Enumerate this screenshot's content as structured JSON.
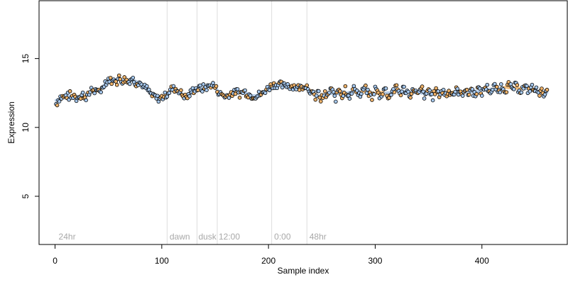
{
  "chart_data": {
    "type": "scatter",
    "title": "",
    "xlabel": "Sample index",
    "ylabel": "Expression",
    "xlim": [
      -15,
      480
    ],
    "ylim": [
      1.5,
      19.2
    ],
    "xticks": [
      0,
      100,
      200,
      300,
      400
    ],
    "yticks": [
      5,
      10,
      15
    ],
    "grid": false,
    "legend": "none",
    "vlines": [
      105,
      133,
      152,
      203,
      236
    ],
    "annotations": [
      {
        "x": 2,
        "text": "24hr"
      },
      {
        "x": 106,
        "text": "dawn"
      },
      {
        "x": 133,
        "text": "dusk"
      },
      {
        "x": 152,
        "text": "12:00"
      },
      {
        "x": 204,
        "text": "0:00"
      },
      {
        "x": 237,
        "text": "48hr"
      }
    ],
    "colors": {
      "point_blue": "#a6c8ee",
      "point_orange": "#f0b36a",
      "trend_blue": "#a9c4e4",
      "trend_orange": "#f2b56b",
      "vline": "#dddddd",
      "annotation": "#a8a8a8",
      "axis": "#000000"
    },
    "n_points": 461,
    "series": [
      {
        "x_start": 1,
        "x_step": 1,
        "values": [
          11.7,
          11.8,
          12.0,
          12.1,
          12.2,
          12.2,
          12.2,
          12.2,
          12.2,
          12.3,
          12.3,
          12.3,
          12.2,
          12.4,
          12.2,
          12.2,
          12.3,
          12.4,
          12.2,
          12.1,
          12.2,
          12.4,
          12.3,
          12.1,
          12.3,
          12.4,
          12.3,
          12.2,
          12.2,
          12.3,
          12.3,
          12.4,
          12.6,
          12.9,
          12.8,
          12.6,
          12.6,
          12.6,
          12.5,
          12.6,
          12.7,
          12.7,
          12.7,
          12.8,
          13.0,
          13.2,
          13.3,
          13.3,
          13.3,
          13.5,
          13.5,
          13.4,
          13.4,
          13.3,
          13.4,
          13.5,
          13.5,
          13.3,
          13.5,
          13.6,
          13.5,
          13.4,
          13.4,
          13.4,
          13.5,
          13.5,
          13.4,
          13.3,
          13.3,
          13.4,
          13.5,
          13.6,
          13.5,
          13.4,
          13.3,
          13.2,
          13.3,
          13.3,
          13.3,
          13.2,
          13.1,
          13.1,
          12.9,
          12.9,
          12.9,
          12.8,
          12.7,
          12.6,
          12.5,
          12.4,
          12.3,
          12.2,
          12.3,
          12.2,
          12.1,
          12.1,
          12.1,
          12.1,
          12.1,
          12.2,
          12.2,
          12.3,
          12.3,
          12.4,
          12.4,
          12.6,
          12.6,
          12.7,
          12.8,
          12.8,
          12.8,
          12.8,
          12.8,
          12.7,
          12.7,
          12.7,
          12.6,
          12.5,
          12.4,
          12.3,
          12.3,
          12.2,
          12.2,
          12.2,
          12.3,
          12.4,
          12.5,
          12.6,
          12.7,
          12.7,
          12.8,
          12.8,
          12.8,
          12.8,
          12.8,
          12.9,
          12.8,
          12.8,
          12.9,
          12.9,
          12.9,
          12.9,
          12.9,
          13.0,
          13.0,
          13.1,
          13.1,
          13.1,
          13.0,
          12.9,
          12.8,
          12.7,
          12.6,
          12.5,
          12.4,
          12.4,
          12.4,
          12.3,
          12.3,
          12.2,
          12.3,
          12.3,
          12.4,
          12.4,
          12.5,
          12.5,
          12.5,
          12.5,
          12.6,
          12.6,
          12.6,
          12.5,
          12.4,
          12.5,
          12.5,
          12.6,
          12.6,
          12.6,
          12.5,
          12.5,
          12.4,
          12.4,
          12.3,
          12.3,
          12.3,
          12.3,
          12.3,
          12.3,
          12.3,
          12.3,
          12.4,
          12.4,
          12.4,
          12.4,
          12.5,
          12.6,
          12.7,
          12.8,
          12.8,
          12.9,
          12.9,
          13.0,
          13.0,
          13.1,
          13.1,
          13.1,
          13.1,
          13.1,
          13.1,
          13.1,
          13.1,
          13.1,
          13.0,
          13.0,
          13.0,
          13.1,
          13.1,
          13.1,
          13.0,
          13.0,
          13.0,
          13.0,
          13.0,
          13.0,
          13.0,
          12.9,
          12.9,
          12.9,
          12.9,
          12.9,
          12.9,
          13.0,
          13.0,
          13.1,
          13.0,
          13.0,
          12.9,
          12.8,
          12.7,
          12.5,
          12.4,
          12.4,
          12.3,
          12.2,
          12.3,
          12.6,
          12.4,
          12.3,
          11.8,
          12.2,
          12.2,
          12.4,
          12.4,
          12.3,
          12.2,
          12.3,
          12.6,
          12.8,
          12.8,
          12.6,
          12.4,
          12.2,
          12.1,
          12.3,
          12.7,
          12.8,
          12.7,
          12.5,
          12.3,
          12.4,
          12.6,
          12.9,
          12.6,
          12.5,
          12.4,
          12.3,
          12.3,
          12.5,
          12.7,
          12.8,
          12.9,
          12.8,
          12.6,
          12.5,
          12.4,
          12.3,
          12.4,
          12.6,
          12.8,
          12.8,
          12.8,
          12.7,
          12.5,
          12.4,
          12.4,
          12.3,
          12.2,
          12.3,
          12.6,
          12.8,
          12.8,
          12.6,
          12.4,
          12.3,
          12.3,
          12.4,
          12.6,
          12.8,
          12.8,
          12.7,
          12.4,
          12.3,
          12.2,
          12.3,
          12.5,
          12.7,
          12.7,
          12.7,
          12.8,
          12.9,
          12.8,
          12.6,
          12.5,
          12.5,
          12.6,
          12.8,
          12.8,
          12.7,
          12.6,
          12.6,
          12.5,
          12.4,
          12.4,
          12.4,
          12.6,
          12.8,
          12.8,
          12.6,
          12.4,
          12.4,
          12.4,
          12.6,
          12.8,
          12.8,
          12.5,
          12.3,
          12.2,
          12.3,
          12.6,
          12.8,
          12.7,
          12.4,
          12.3,
          12.2,
          12.4,
          12.6,
          12.7,
          12.6,
          12.4,
          12.4,
          12.5,
          12.6,
          12.6,
          12.6,
          12.5,
          12.4,
          12.4,
          12.5,
          12.6,
          12.6,
          12.6,
          12.5,
          12.4,
          12.5,
          12.6,
          12.7,
          12.7,
          12.6,
          12.5,
          12.4,
          12.4,
          12.5,
          12.7,
          12.8,
          12.7,
          12.5,
          12.4,
          12.5,
          12.7,
          12.8,
          12.7,
          12.5,
          12.4,
          12.5,
          12.6,
          12.8,
          12.8,
          12.6,
          12.5,
          12.5,
          12.6,
          12.8,
          12.9,
          12.9,
          12.9,
          12.8,
          12.7,
          12.6,
          12.6,
          12.7,
          12.9,
          13.0,
          12.9,
          12.7,
          12.6,
          12.6,
          12.8,
          13.0,
          13.0,
          12.9,
          12.8,
          12.7,
          12.8,
          13.0,
          13.1,
          13.0,
          12.9,
          12.8,
          12.8,
          12.9,
          13.0,
          13.0,
          12.9,
          12.8,
          12.8,
          12.7,
          12.7,
          12.8,
          12.9,
          12.9,
          12.9,
          12.8,
          12.7,
          12.7,
          12.8,
          12.9,
          12.9,
          12.8,
          12.7,
          12.6,
          12.7,
          12.8,
          12.7,
          12.5,
          12.5,
          12.6,
          12.6,
          12.5,
          12.5,
          12.5,
          12.5
        ]
      }
    ]
  }
}
